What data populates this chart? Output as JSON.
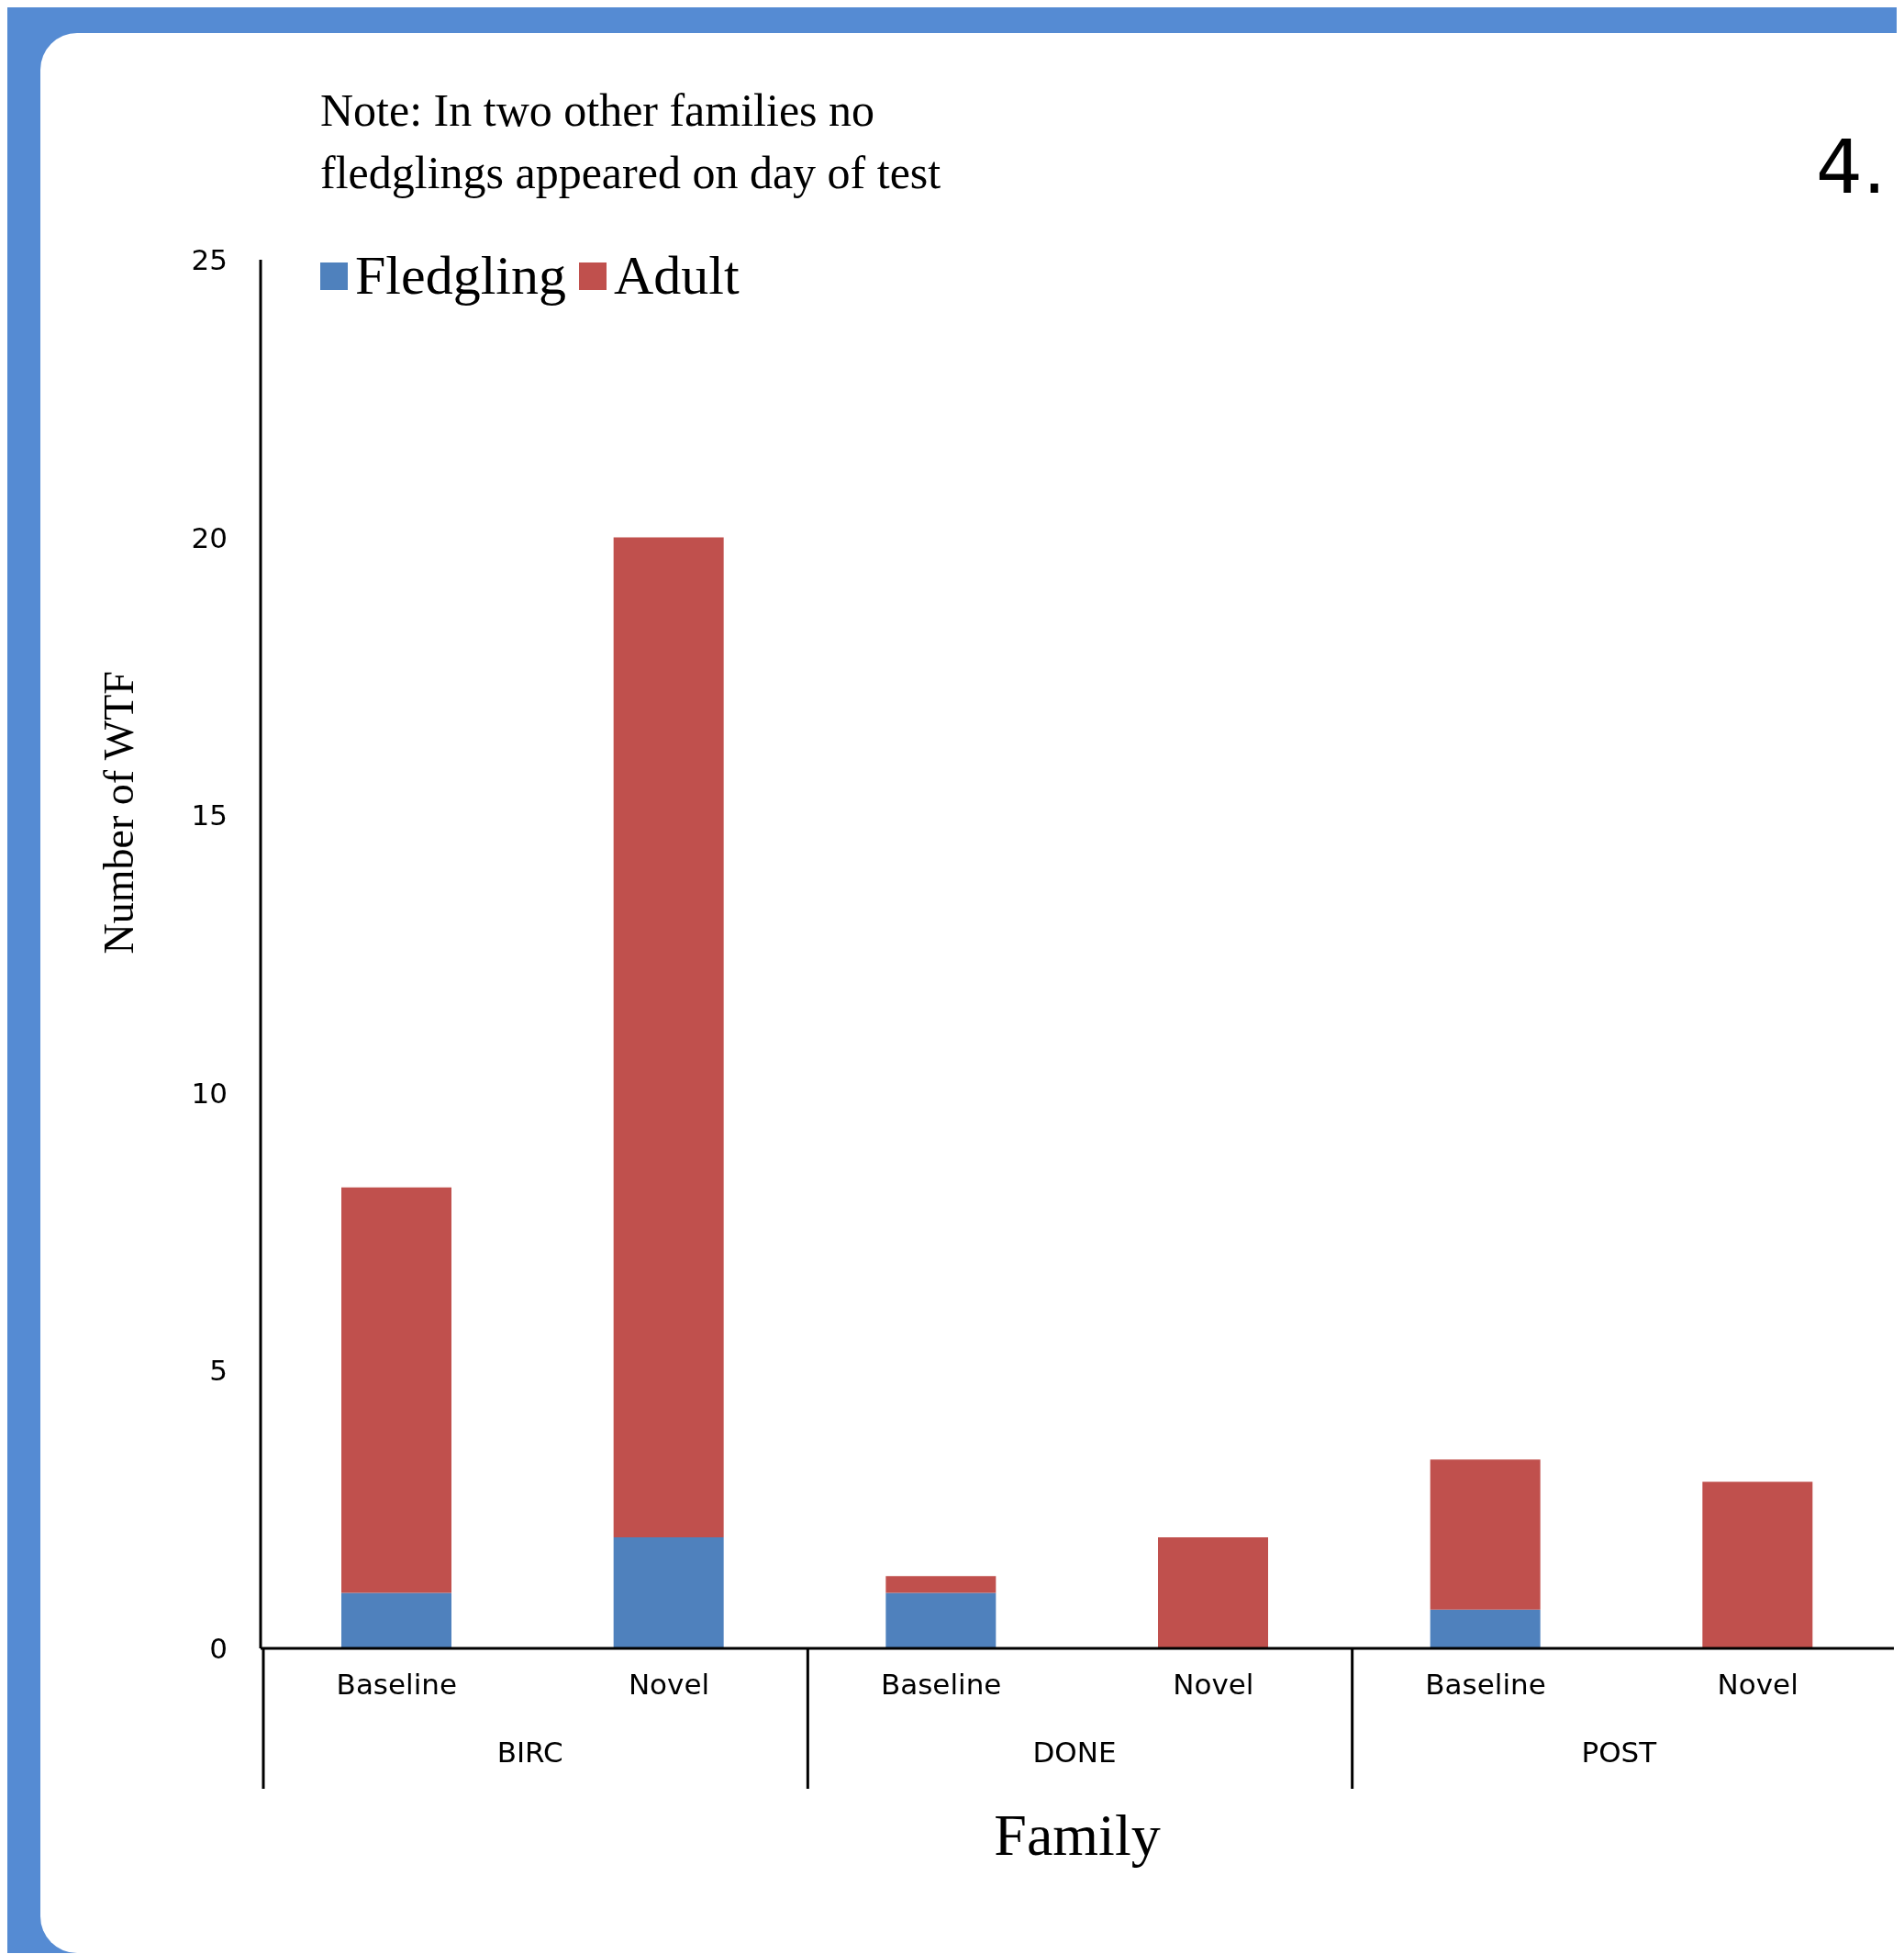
{
  "chart_data": {
    "type": "bar",
    "stacked": true,
    "xlabel": "Family",
    "ylabel": "Number of WTF",
    "categories": [
      "Baseline",
      "Novel",
      "Baseline",
      "Novel",
      "Baseline",
      "Novel"
    ],
    "series": [
      {
        "name": "Fledgling",
        "color": "#4f81bd",
        "values": [
          1,
          2,
          1,
          0,
          0.7,
          0
        ]
      },
      {
        "name": "Adult",
        "color": "#c0504d",
        "values": [
          7.3,
          18,
          0.3,
          2,
          2.7,
          3
        ]
      }
    ],
    "ylim": [
      0,
      25
    ],
    "yticks": [
      0,
      5,
      10,
      15,
      20,
      25
    ],
    "legend": "top left",
    "annotations": [
      "Note: In two other families no fledglings appeared on day of test",
      "4.",
      "BIRC",
      "DONE",
      "POST"
    ]
  }
}
